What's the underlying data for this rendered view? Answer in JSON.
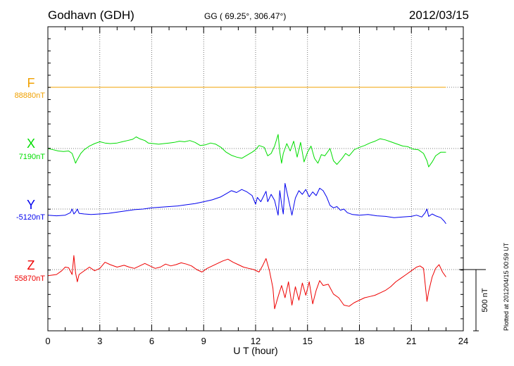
{
  "header": {
    "station": "Godhavn (GDH)",
    "coords": "GG ( 69.25°, 306.47°)",
    "date": "2012/03/15",
    "plotted": "Plotted at 2012/04/15 00:59 UT"
  },
  "chart_data": {
    "type": "line",
    "xlabel": "U T (hour)",
    "xlim": [
      0,
      24
    ],
    "xticks": [
      0,
      3,
      6,
      9,
      12,
      15,
      18,
      21,
      24
    ],
    "scale_bar_label": "500 nT",
    "grid": true,
    "series": [
      {
        "name": "F",
        "baseline_label": "88880nT",
        "color": "#f0a000",
        "points": [
          [
            0,
            0
          ],
          [
            23,
            0
          ]
        ]
      },
      {
        "name": "X",
        "baseline_label": "7190nT",
        "color": "#00dd00",
        "points": [
          [
            0,
            0
          ],
          [
            0.3,
            -10
          ],
          [
            0.6,
            -20
          ],
          [
            0.9,
            -25
          ],
          [
            1.2,
            -20
          ],
          [
            1.4,
            -40
          ],
          [
            1.5,
            -80
          ],
          [
            1.6,
            -120
          ],
          [
            1.7,
            -90
          ],
          [
            1.9,
            -40
          ],
          [
            2.1,
            -10
          ],
          [
            2.4,
            20
          ],
          [
            2.7,
            40
          ],
          [
            3.0,
            55
          ],
          [
            3.3,
            45
          ],
          [
            3.6,
            40
          ],
          [
            4.0,
            45
          ],
          [
            4.3,
            55
          ],
          [
            4.6,
            65
          ],
          [
            4.9,
            75
          ],
          [
            5.1,
            95
          ],
          [
            5.3,
            80
          ],
          [
            5.6,
            65
          ],
          [
            5.8,
            45
          ],
          [
            6.1,
            40
          ],
          [
            6.4,
            35
          ],
          [
            6.7,
            40
          ],
          [
            7.0,
            45
          ],
          [
            7.3,
            50
          ],
          [
            7.6,
            60
          ],
          [
            7.9,
            55
          ],
          [
            8.2,
            65
          ],
          [
            8.5,
            50
          ],
          [
            8.8,
            25
          ],
          [
            9.1,
            30
          ],
          [
            9.4,
            45
          ],
          [
            9.7,
            35
          ],
          [
            10.0,
            10
          ],
          [
            10.3,
            -30
          ],
          [
            10.6,
            -55
          ],
          [
            10.9,
            -70
          ],
          [
            11.2,
            -80
          ],
          [
            11.5,
            -55
          ],
          [
            11.8,
            -30
          ],
          [
            12.0,
            -10
          ],
          [
            12.2,
            25
          ],
          [
            12.5,
            10
          ],
          [
            12.7,
            -60
          ],
          [
            12.9,
            -40
          ],
          [
            13.1,
            20
          ],
          [
            13.3,
            115
          ],
          [
            13.4,
            -30
          ],
          [
            13.5,
            -120
          ],
          [
            13.6,
            -40
          ],
          [
            13.8,
            40
          ],
          [
            14.0,
            -20
          ],
          [
            14.2,
            60
          ],
          [
            14.4,
            -70
          ],
          [
            14.6,
            50
          ],
          [
            14.8,
            -110
          ],
          [
            15.0,
            -30
          ],
          [
            15.2,
            20
          ],
          [
            15.4,
            -80
          ],
          [
            15.6,
            -120
          ],
          [
            15.8,
            -50
          ],
          [
            16.0,
            -60
          ],
          [
            16.3,
            0
          ],
          [
            16.5,
            -100
          ],
          [
            16.7,
            -130
          ],
          [
            17.0,
            -80
          ],
          [
            17.2,
            -40
          ],
          [
            17.4,
            -60
          ],
          [
            17.7,
            -10
          ],
          [
            18.0,
            10
          ],
          [
            18.3,
            25
          ],
          [
            18.6,
            45
          ],
          [
            18.9,
            60
          ],
          [
            19.2,
            80
          ],
          [
            19.5,
            70
          ],
          [
            19.8,
            55
          ],
          [
            20.1,
            40
          ],
          [
            20.5,
            20
          ],
          [
            20.8,
            15
          ],
          [
            21.1,
            -5
          ],
          [
            21.4,
            -10
          ],
          [
            21.7,
            -40
          ],
          [
            21.9,
            -100
          ],
          [
            22.0,
            -150
          ],
          [
            22.2,
            -110
          ],
          [
            22.4,
            -60
          ],
          [
            22.7,
            -30
          ],
          [
            23.0,
            -30
          ]
        ]
      },
      {
        "name": "Y",
        "baseline_label": "-5120nT",
        "color": "#0000ee",
        "points": [
          [
            0,
            -50
          ],
          [
            0.5,
            -55
          ],
          [
            1.0,
            -50
          ],
          [
            1.3,
            -30
          ],
          [
            1.4,
            0
          ],
          [
            1.5,
            -40
          ],
          [
            1.6,
            -25
          ],
          [
            1.7,
            0
          ],
          [
            1.8,
            -35
          ],
          [
            2.1,
            -40
          ],
          [
            2.5,
            -45
          ],
          [
            3.0,
            -40
          ],
          [
            3.5,
            -35
          ],
          [
            4.0,
            -25
          ],
          [
            4.5,
            -15
          ],
          [
            5.0,
            -5
          ],
          [
            5.5,
            0
          ],
          [
            6.0,
            10
          ],
          [
            6.5,
            15
          ],
          [
            7.0,
            20
          ],
          [
            7.5,
            25
          ],
          [
            8.0,
            35
          ],
          [
            8.5,
            45
          ],
          [
            9.0,
            60
          ],
          [
            9.5,
            75
          ],
          [
            10.0,
            100
          ],
          [
            10.3,
            125
          ],
          [
            10.6,
            150
          ],
          [
            10.9,
            135
          ],
          [
            11.2,
            160
          ],
          [
            11.5,
            140
          ],
          [
            11.8,
            110
          ],
          [
            12.0,
            40
          ],
          [
            12.1,
            95
          ],
          [
            12.3,
            60
          ],
          [
            12.6,
            145
          ],
          [
            12.7,
            60
          ],
          [
            12.9,
            120
          ],
          [
            13.1,
            70
          ],
          [
            13.3,
            -50
          ],
          [
            13.4,
            150
          ],
          [
            13.5,
            40
          ],
          [
            13.6,
            -40
          ],
          [
            13.7,
            210
          ],
          [
            13.9,
            80
          ],
          [
            14.1,
            -50
          ],
          [
            14.3,
            90
          ],
          [
            14.5,
            150
          ],
          [
            14.7,
            120
          ],
          [
            14.9,
            160
          ],
          [
            15.1,
            100
          ],
          [
            15.3,
            140
          ],
          [
            15.5,
            110
          ],
          [
            15.7,
            170
          ],
          [
            15.9,
            150
          ],
          [
            16.1,
            100
          ],
          [
            16.3,
            30
          ],
          [
            16.5,
            10
          ],
          [
            16.7,
            20
          ],
          [
            16.9,
            -10
          ],
          [
            17.1,
            0
          ],
          [
            17.3,
            -30
          ],
          [
            17.6,
            -45
          ],
          [
            18.0,
            -50
          ],
          [
            18.5,
            -45
          ],
          [
            19.0,
            -55
          ],
          [
            19.5,
            -60
          ],
          [
            20.0,
            -70
          ],
          [
            20.5,
            -65
          ],
          [
            21.0,
            -60
          ],
          [
            21.3,
            -50
          ],
          [
            21.6,
            -65
          ],
          [
            21.8,
            -30
          ],
          [
            21.9,
            0
          ],
          [
            22.0,
            -60
          ],
          [
            22.2,
            -40
          ],
          [
            22.4,
            -55
          ],
          [
            22.7,
            -70
          ],
          [
            22.9,
            -100
          ],
          [
            23.0,
            -120
          ]
        ]
      },
      {
        "name": "Z",
        "baseline_label": "55870nT",
        "color": "#ee0000",
        "points": [
          [
            0,
            -50
          ],
          [
            0.5,
            -40
          ],
          [
            0.8,
            -10
          ],
          [
            1.0,
            20
          ],
          [
            1.2,
            15
          ],
          [
            1.4,
            -40
          ],
          [
            1.5,
            115
          ],
          [
            1.6,
            -25
          ],
          [
            1.7,
            -100
          ],
          [
            1.8,
            -40
          ],
          [
            2.0,
            -20
          ],
          [
            2.4,
            20
          ],
          [
            2.7,
            -10
          ],
          [
            3.0,
            10
          ],
          [
            3.3,
            60
          ],
          [
            3.6,
            40
          ],
          [
            4.0,
            20
          ],
          [
            4.4,
            35
          ],
          [
            4.7,
            20
          ],
          [
            5.0,
            10
          ],
          [
            5.3,
            30
          ],
          [
            5.6,
            50
          ],
          [
            5.9,
            30
          ],
          [
            6.2,
            10
          ],
          [
            6.5,
            20
          ],
          [
            6.8,
            45
          ],
          [
            7.1,
            30
          ],
          [
            7.4,
            40
          ],
          [
            7.7,
            55
          ],
          [
            8.0,
            45
          ],
          [
            8.3,
            30
          ],
          [
            8.6,
            0
          ],
          [
            8.9,
            -20
          ],
          [
            9.2,
            10
          ],
          [
            9.5,
            30
          ],
          [
            9.8,
            50
          ],
          [
            10.1,
            70
          ],
          [
            10.4,
            85
          ],
          [
            10.7,
            60
          ],
          [
            11.0,
            40
          ],
          [
            11.3,
            20
          ],
          [
            11.6,
            10
          ],
          [
            11.9,
            0
          ],
          [
            12.2,
            -20
          ],
          [
            12.4,
            30
          ],
          [
            12.6,
            90
          ],
          [
            12.8,
            -10
          ],
          [
            13.0,
            -150
          ],
          [
            13.1,
            -320
          ],
          [
            13.3,
            -220
          ],
          [
            13.5,
            -130
          ],
          [
            13.7,
            -230
          ],
          [
            13.9,
            -100
          ],
          [
            14.1,
            -290
          ],
          [
            14.3,
            -140
          ],
          [
            14.5,
            -250
          ],
          [
            14.7,
            -110
          ],
          [
            14.9,
            -210
          ],
          [
            15.1,
            -100
          ],
          [
            15.3,
            -280
          ],
          [
            15.5,
            -170
          ],
          [
            15.7,
            -90
          ],
          [
            15.9,
            -130
          ],
          [
            16.2,
            -120
          ],
          [
            16.5,
            -200
          ],
          [
            16.8,
            -230
          ],
          [
            17.1,
            -290
          ],
          [
            17.4,
            -300
          ],
          [
            17.7,
            -270
          ],
          [
            18.0,
            -250
          ],
          [
            18.3,
            -230
          ],
          [
            18.6,
            -220
          ],
          [
            18.9,
            -210
          ],
          [
            19.2,
            -190
          ],
          [
            19.5,
            -170
          ],
          [
            19.8,
            -140
          ],
          [
            20.1,
            -100
          ],
          [
            20.4,
            -70
          ],
          [
            20.7,
            -40
          ],
          [
            21.0,
            -10
          ],
          [
            21.3,
            20
          ],
          [
            21.5,
            30
          ],
          [
            21.7,
            10
          ],
          [
            21.8,
            -120
          ],
          [
            21.9,
            -260
          ],
          [
            22.0,
            -180
          ],
          [
            22.2,
            -60
          ],
          [
            22.4,
            10
          ],
          [
            22.6,
            40
          ],
          [
            22.8,
            -20
          ],
          [
            23.0,
            -60
          ]
        ]
      }
    ]
  }
}
